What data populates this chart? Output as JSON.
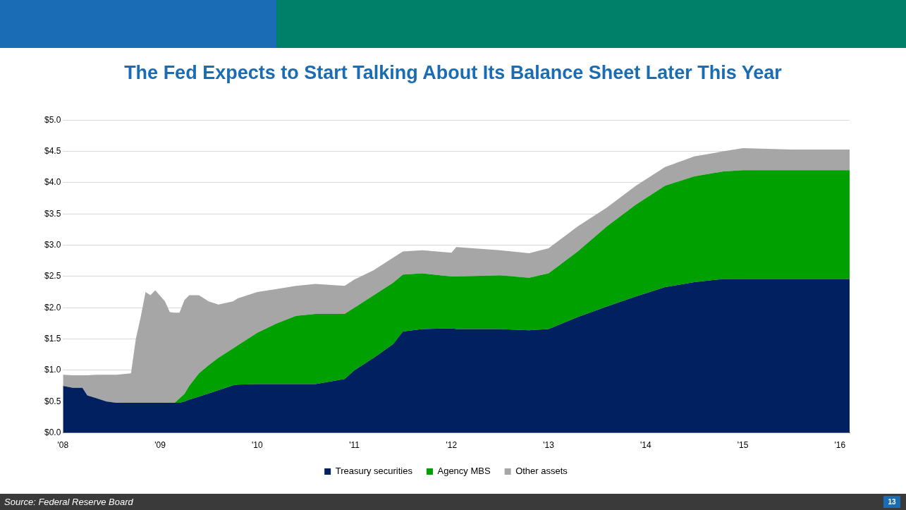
{
  "chart_data": {
    "type": "area",
    "title": "The Fed Expects to Start Talking About Its Balance Sheet Later This Year",
    "x": [
      2008.0,
      2008.1,
      2008.2,
      2008.25,
      2008.35,
      2008.45,
      2008.55,
      2008.7,
      2008.75,
      2008.8,
      2008.85,
      2008.9,
      2008.95,
      2009.05,
      2009.1,
      2009.15,
      2009.2,
      2009.25,
      2009.3,
      2009.4,
      2009.5,
      2009.6,
      2009.75,
      2009.8,
      2010.0,
      2010.2,
      2010.4,
      2010.6,
      2010.9,
      2011.0,
      2011.2,
      2011.4,
      2011.5,
      2011.7,
      2012.0,
      2012.05,
      2012.5,
      2012.8,
      2013.0,
      2013.3,
      2013.6,
      2013.9,
      2014.2,
      2014.5,
      2014.8,
      2015.0,
      2015.5,
      2016.1
    ],
    "stacked": true,
    "series": [
      {
        "name": "Treasury securities",
        "color": "#002060",
        "values": [
          0.75,
          0.72,
          0.72,
          0.6,
          0.55,
          0.5,
          0.48,
          0.48,
          0.48,
          0.48,
          0.48,
          0.48,
          0.48,
          0.48,
          0.48,
          0.48,
          0.48,
          0.5,
          0.53,
          0.58,
          0.63,
          0.68,
          0.76,
          0.77,
          0.78,
          0.78,
          0.78,
          0.78,
          0.86,
          1.0,
          1.2,
          1.42,
          1.62,
          1.66,
          1.67,
          1.66,
          1.66,
          1.64,
          1.66,
          1.85,
          2.02,
          2.18,
          2.33,
          2.41,
          2.46,
          2.46,
          2.46,
          2.46
        ]
      },
      {
        "name": "Agency MBS",
        "color": "#00a000",
        "values": [
          0,
          0,
          0,
          0,
          0,
          0,
          0,
          0,
          0,
          0,
          0,
          0,
          0,
          0,
          0,
          0,
          0.07,
          0.12,
          0.22,
          0.37,
          0.45,
          0.52,
          0.59,
          0.63,
          0.82,
          0.97,
          1.09,
          1.12,
          1.04,
          1.0,
          1.0,
          0.98,
          0.91,
          0.89,
          0.83,
          0.84,
          0.86,
          0.84,
          0.89,
          1.05,
          1.28,
          1.47,
          1.62,
          1.69,
          1.72,
          1.74,
          1.74,
          1.74
        ]
      },
      {
        "name": "Other assets",
        "color": "#a6a6a6",
        "values": [
          0.18,
          0.2,
          0.2,
          0.32,
          0.38,
          0.43,
          0.45,
          0.47,
          1.02,
          1.37,
          1.77,
          1.72,
          1.8,
          1.62,
          1.45,
          1.44,
          1.37,
          1.5,
          1.45,
          1.25,
          1.02,
          0.85,
          0.75,
          0.75,
          0.65,
          0.55,
          0.48,
          0.48,
          0.45,
          0.45,
          0.4,
          0.4,
          0.37,
          0.37,
          0.38,
          0.47,
          0.4,
          0.39,
          0.4,
          0.4,
          0.3,
          0.3,
          0.3,
          0.32,
          0.32,
          0.35,
          0.33,
          0.33
        ]
      }
    ],
    "xlim": [
      2008,
      2016.1
    ],
    "xticks": [
      {
        "value": 2008,
        "label": "'08"
      },
      {
        "value": 2009,
        "label": "'09"
      },
      {
        "value": 2010,
        "label": "'10"
      },
      {
        "value": 2011,
        "label": "'11"
      },
      {
        "value": 2012,
        "label": "'12"
      },
      {
        "value": 2013,
        "label": "'13"
      },
      {
        "value": 2014,
        "label": "'14"
      },
      {
        "value": 2015,
        "label": "'15"
      },
      {
        "value": 2016,
        "label": "'16"
      }
    ],
    "ylim": [
      0,
      5
    ],
    "yticks": [
      {
        "value": 0,
        "label": "$0.0"
      },
      {
        "value": 0.5,
        "label": "$0.5"
      },
      {
        "value": 1,
        "label": "$1.0"
      },
      {
        "value": 1.5,
        "label": "$1.5"
      },
      {
        "value": 2,
        "label": "$2.0"
      },
      {
        "value": 2.5,
        "label": "$2.5"
      },
      {
        "value": 3,
        "label": "$3.0"
      },
      {
        "value": 3.5,
        "label": "$3.5"
      },
      {
        "value": 4,
        "label": "$4.0"
      },
      {
        "value": 4.5,
        "label": "$4.5"
      },
      {
        "value": 5,
        "label": "$5.0"
      }
    ],
    "grid": "y",
    "legend": "bottom",
    "annotations": [
      "Source: Federal Reserve Board",
      "13"
    ]
  }
}
